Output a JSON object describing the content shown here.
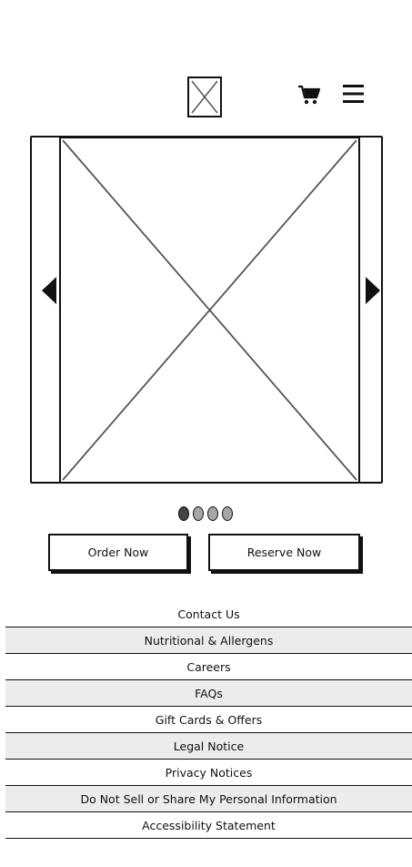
{
  "header": {
    "logo_icon": "image-placeholder-icon",
    "cart_icon": "cart-icon",
    "menu_icon": "hamburger-menu-icon"
  },
  "carousel": {
    "image_icon": "image-placeholder",
    "prev_icon": "chevron-left-icon",
    "next_icon": "chevron-right-icon",
    "slide_count": 4,
    "active_slide": 1
  },
  "actions": {
    "order_label": "Order Now",
    "reserve_label": "Reserve Now"
  },
  "footer": {
    "links": [
      "Contact Us",
      "Nutritional & Allergens",
      "Careers",
      "FAQs",
      "Gift Cards & Offers",
      "Legal Notice",
      "Privacy Notices",
      "Do Not Sell or Share My Personal Information",
      "Accessibility Statement"
    ]
  },
  "colors": {
    "ink": "#111111",
    "shaded_row": "#ececec",
    "dot_active": "#444444",
    "dot_inactive": "#a6a6a6"
  }
}
